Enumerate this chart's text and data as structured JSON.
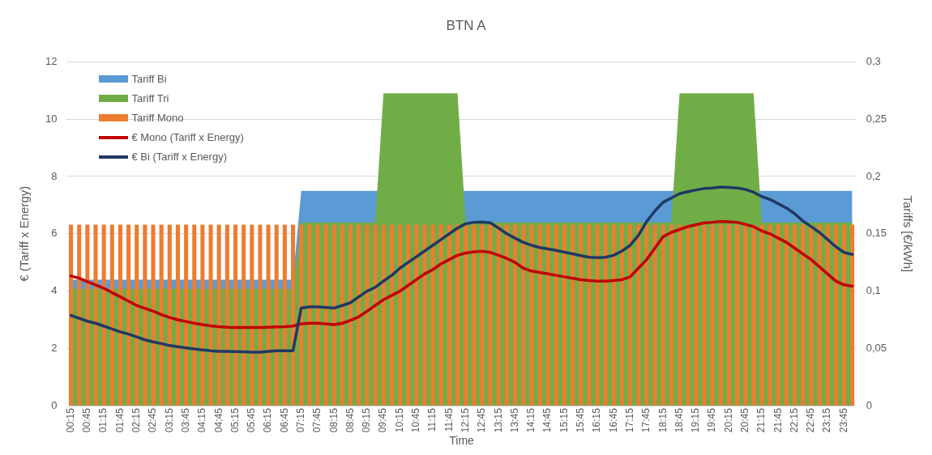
{
  "chart_data": {
    "type": "line",
    "title": "BTN A",
    "xlabel": "Time",
    "ylabel": "€ (Tariff x Energy)",
    "y2label": "Tariffs [€/kWh]",
    "categories": [
      "00:15",
      null,
      "00:45",
      null,
      "01:15",
      null,
      "01:45",
      null,
      "02:15",
      null,
      "02:45",
      null,
      "03:15",
      null,
      "03:45",
      null,
      "04:15",
      null,
      "04:45",
      null,
      "05:15",
      null,
      "05:45",
      null,
      "06:15",
      null,
      "06:45",
      null,
      "07:15",
      null,
      "07:45",
      null,
      "08:15",
      null,
      "08:45",
      null,
      "09:15",
      null,
      "09:45",
      null,
      "10:15",
      null,
      "10:45",
      null,
      "11:15",
      null,
      "11:45",
      null,
      "12:15",
      null,
      "12:45",
      null,
      "13:15",
      null,
      "13:45",
      null,
      "14:15",
      null,
      "14:45",
      null,
      "15:15",
      null,
      "15:45",
      null,
      "16:15",
      null,
      "16:45",
      null,
      "17:15",
      null,
      "17:45",
      null,
      "18:15",
      null,
      "18:45",
      null,
      "19:15",
      null,
      "19:45",
      null,
      "20:15",
      null,
      "20:45",
      null,
      "21:15",
      null,
      "21:45",
      null,
      "22:15",
      null,
      "22:45",
      null,
      "23:15",
      null,
      "23:45",
      null
    ],
    "series": [
      {
        "name": "Tariff Bi",
        "type": "area",
        "axis": "y2",
        "color": "#5b9bd5",
        "values": [
          0.11,
          0.11,
          0.11,
          0.11,
          0.11,
          0.11,
          0.11,
          0.11,
          0.11,
          0.11,
          0.11,
          0.11,
          0.11,
          0.11,
          0.11,
          0.11,
          0.11,
          0.11,
          0.11,
          0.11,
          0.11,
          0.11,
          0.11,
          0.11,
          0.11,
          0.11,
          0.11,
          0.11,
          0.1875,
          0.1875,
          0.1875,
          0.1875,
          0.1875,
          0.1875,
          0.1875,
          0.1875,
          0.1875,
          0.1875,
          null,
          null,
          null,
          null,
          null,
          null,
          null,
          null,
          null,
          null,
          0.1875,
          0.1875,
          0.1875,
          0.1875,
          0.1875,
          0.1875,
          0.1875,
          0.1875,
          0.1875,
          0.1875,
          0.1875,
          0.1875,
          0.1875,
          0.1875,
          0.1875,
          0.1875,
          0.1875,
          0.1875,
          0.1875,
          0.1875,
          0.1875,
          0.1875,
          0.1875,
          0.1875,
          0.1875,
          0.1875,
          null,
          null,
          null,
          null,
          null,
          null,
          null,
          null,
          null,
          null,
          0.1875,
          0.1875,
          0.1875,
          0.1875,
          0.1875,
          0.1875,
          0.1875,
          0.1875,
          0.1875,
          0.1875,
          0.1875,
          0.1875
        ]
      },
      {
        "name": "Tariff Tri",
        "type": "area",
        "axis": "y2",
        "color": "#70ad47",
        "values": [
          0.102,
          0.102,
          0.102,
          0.102,
          0.102,
          0.102,
          0.102,
          0.102,
          0.102,
          0.102,
          0.102,
          0.102,
          0.102,
          0.102,
          0.102,
          0.102,
          0.102,
          0.102,
          0.102,
          0.102,
          0.102,
          0.102,
          0.102,
          0.102,
          0.102,
          0.102,
          0.102,
          0.102,
          0.16,
          0.16,
          0.16,
          0.16,
          0.16,
          0.16,
          0.16,
          0.16,
          0.16,
          0.16,
          0.2725,
          0.2725,
          0.2725,
          0.2725,
          0.2725,
          0.2725,
          0.2725,
          0.2725,
          0.2725,
          0.2725,
          0.16,
          0.16,
          0.16,
          0.16,
          0.16,
          0.16,
          0.16,
          0.16,
          0.16,
          0.16,
          0.16,
          0.16,
          0.16,
          0.16,
          0.16,
          0.16,
          0.16,
          0.16,
          0.16,
          0.16,
          0.16,
          0.16,
          0.16,
          0.16,
          0.16,
          0.16,
          0.2725,
          0.2725,
          0.2725,
          0.2725,
          0.2725,
          0.2725,
          0.2725,
          0.2725,
          0.2725,
          0.2725,
          0.16,
          0.16,
          0.16,
          0.16,
          0.16,
          0.16,
          0.16,
          0.16,
          0.16,
          0.16,
          0.16,
          0.16
        ]
      },
      {
        "name": "Tariff Mono",
        "type": "bar",
        "axis": "y2",
        "color": "#ed7d31",
        "values": [
          0.158,
          0.158,
          0.158,
          0.158,
          0.158,
          0.158,
          0.158,
          0.158,
          0.158,
          0.158,
          0.158,
          0.158,
          0.158,
          0.158,
          0.158,
          0.158,
          0.158,
          0.158,
          0.158,
          0.158,
          0.158,
          0.158,
          0.158,
          0.158,
          0.158,
          0.158,
          0.158,
          0.158,
          0.158,
          0.158,
          0.158,
          0.158,
          0.158,
          0.158,
          0.158,
          0.158,
          0.158,
          0.158,
          0.158,
          0.158,
          0.158,
          0.158,
          0.158,
          0.158,
          0.158,
          0.158,
          0.158,
          0.158,
          0.158,
          0.158,
          0.158,
          0.158,
          0.158,
          0.158,
          0.158,
          0.158,
          0.158,
          0.158,
          0.158,
          0.158,
          0.158,
          0.158,
          0.158,
          0.158,
          0.158,
          0.158,
          0.158,
          0.158,
          0.158,
          0.158,
          0.158,
          0.158,
          0.158,
          0.158,
          0.158,
          0.158,
          0.158,
          0.158,
          0.158,
          0.158,
          0.158,
          0.158,
          0.158,
          0.158,
          0.158,
          0.158,
          0.158,
          0.158,
          0.158,
          0.158,
          0.158,
          0.158,
          0.158,
          0.158,
          0.158,
          0.158
        ]
      },
      {
        "name": "€ Mono (Tariff x Energy)",
        "color": "#c00000",
        "values": [
          4.53,
          4.45,
          4.33,
          4.22,
          4.1,
          3.95,
          3.8,
          3.65,
          3.5,
          3.4,
          3.3,
          3.18,
          3.08,
          3.0,
          2.94,
          2.88,
          2.83,
          2.79,
          2.76,
          2.74,
          2.73,
          2.73,
          2.73,
          2.73,
          2.74,
          2.75,
          2.76,
          2.78,
          2.86,
          2.88,
          2.88,
          2.86,
          2.83,
          2.88,
          2.98,
          3.1,
          3.3,
          3.5,
          3.7,
          3.85,
          4.0,
          4.2,
          4.4,
          4.6,
          4.75,
          4.95,
          5.1,
          5.25,
          5.33,
          5.37,
          5.39,
          5.35,
          5.25,
          5.14,
          5.0,
          4.8,
          4.7,
          4.65,
          4.6,
          4.55,
          4.5,
          4.45,
          4.4,
          4.37,
          4.35,
          4.35,
          4.37,
          4.4,
          4.5,
          4.8,
          5.1,
          5.5,
          5.9,
          6.05,
          6.15,
          6.25,
          6.32,
          6.38,
          6.4,
          6.43,
          6.42,
          6.4,
          6.33,
          6.25,
          6.1,
          6.0,
          5.85,
          5.7,
          5.5,
          5.3,
          5.1,
          4.85,
          4.6,
          4.35,
          4.22,
          4.17
        ]
      },
      {
        "name": "€ Bi (Tariff x Energy)",
        "color": "#203864",
        "values": [
          3.15,
          3.05,
          2.95,
          2.88,
          2.78,
          2.68,
          2.58,
          2.5,
          2.4,
          2.3,
          2.23,
          2.17,
          2.1,
          2.06,
          2.02,
          1.98,
          1.95,
          1.92,
          1.9,
          1.9,
          1.89,
          1.88,
          1.87,
          1.87,
          1.9,
          1.92,
          1.92,
          1.92,
          3.41,
          3.45,
          3.45,
          3.43,
          3.41,
          3.5,
          3.6,
          3.8,
          4.0,
          4.13,
          4.35,
          4.55,
          4.8,
          5.0,
          5.2,
          5.4,
          5.6,
          5.8,
          6.0,
          6.2,
          6.35,
          6.4,
          6.41,
          6.38,
          6.2,
          6.0,
          5.85,
          5.7,
          5.6,
          5.52,
          5.47,
          5.42,
          5.36,
          5.3,
          5.24,
          5.18,
          5.17,
          5.18,
          5.25,
          5.4,
          5.6,
          5.95,
          6.43,
          6.8,
          7.1,
          7.25,
          7.4,
          7.47,
          7.53,
          7.58,
          7.6,
          7.63,
          7.62,
          7.6,
          7.55,
          7.45,
          7.3,
          7.2,
          7.05,
          6.9,
          6.7,
          6.45,
          6.25,
          6.05,
          5.8,
          5.55,
          5.35,
          5.28
        ]
      }
    ],
    "ylim": [
      0,
      12
    ],
    "yticks": [
      0,
      2,
      4,
      6,
      8,
      10,
      12
    ],
    "y2lim": [
      0,
      0.3
    ],
    "y2ticks": [
      0,
      {
        "value": 0.05,
        "label": "0,05"
      },
      {
        "value": 0.1,
        "label": "0,1"
      },
      {
        "value": 0.15,
        "label": "0,15"
      },
      {
        "value": 0.2,
        "label": "0,2"
      },
      {
        "value": 0.25,
        "label": "0,25"
      },
      {
        "value": 0.3,
        "label": "0,3"
      }
    ],
    "grid": "y",
    "legend": "top left"
  }
}
